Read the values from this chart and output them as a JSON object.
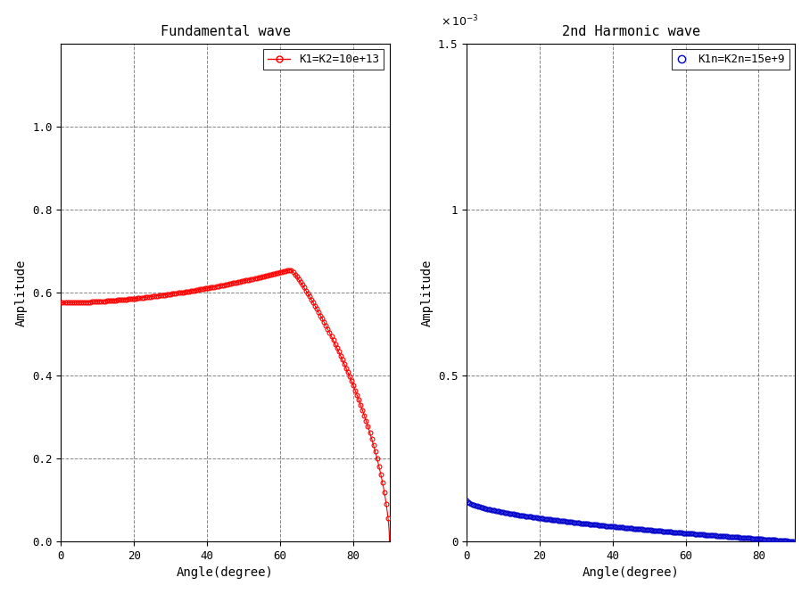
{
  "left_title": "Fundamental wave",
  "right_title": "2nd Harmonic wave",
  "left_legend": "K1=K2=10e+13",
  "right_legend": "K1n=K2n=15e+9",
  "left_xlabel": "Angle(degree)",
  "right_xlabel": "Angle(degree)",
  "left_ylabel": "Amplitude",
  "right_ylabel": "Amplitude",
  "left_xlim": [
    0,
    90
  ],
  "right_xlim": [
    0,
    90
  ],
  "left_ylim": [
    0,
    1.2
  ],
  "right_ylim": [
    0,
    0.0015
  ],
  "left_xticks": [
    0,
    20,
    40,
    60,
    80
  ],
  "right_xticks": [
    0,
    20,
    40,
    60,
    80
  ],
  "left_yticks": [
    0,
    0.2,
    0.4,
    0.6,
    0.8,
    1.0
  ],
  "right_yticks": [
    0,
    0.0005,
    0.001,
    0.0015
  ],
  "right_yticklabels": [
    "0",
    "0.5",
    "1",
    "1.5"
  ],
  "left_color": "#FF0000",
  "right_color": "#0000CC",
  "marker_size": 3.5,
  "line_width": 0.8,
  "bg_color": "#F0F0F0",
  "fig_bg": "#FFFFFF"
}
